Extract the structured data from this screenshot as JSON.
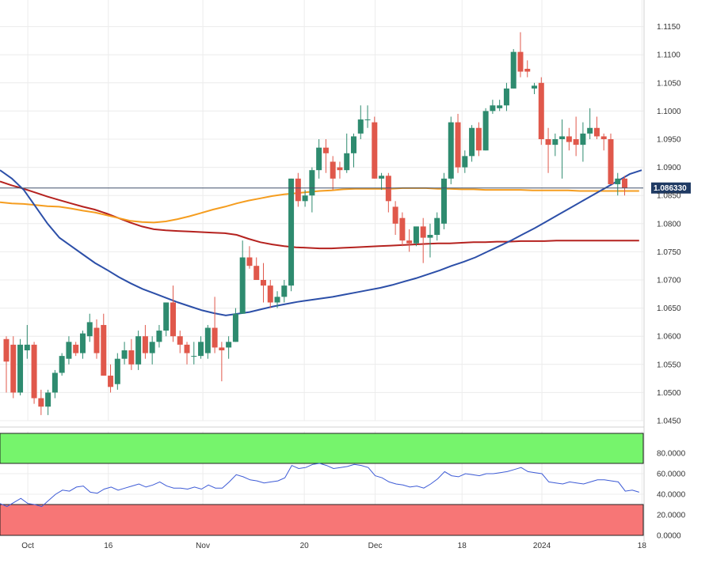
{
  "chart_data": [
    {
      "type": "candlestick",
      "symbol": "",
      "title": "",
      "x_ticks": [
        "Oct",
        "16",
        "Nov",
        "20",
        "Dec",
        "18",
        "2024",
        "18"
      ],
      "y_ticks": [
        "1.1150",
        "1.1100",
        "1.1050",
        "1.1000",
        "1.0950",
        "1.0900",
        "1.0850",
        "1.0800",
        "1.0750",
        "1.0700",
        "1.0650",
        "1.0600",
        "1.0550",
        "1.0500",
        "1.0450"
      ],
      "ylim": [
        1.045,
        1.118
      ],
      "last_price": 1.08633,
      "last_price_label": "1.086330",
      "grid": true,
      "colors": {
        "up": "#2e8b6f",
        "down": "#e0584b",
        "sma_fast": "#2c4fa8",
        "sma_mid": "#f59d1f",
        "sma_slow": "#b5221f",
        "last_price_line": "#41516b",
        "last_price_bg": "#1f3a63"
      },
      "candles": [
        [
          1.0595,
          1.06,
          1.05,
          1.0555
        ],
        [
          1.0585,
          1.06,
          1.049,
          1.05
        ],
        [
          1.05,
          1.0595,
          1.0495,
          1.0585
        ],
        [
          1.0575,
          1.062,
          1.056,
          1.0585
        ],
        [
          1.0585,
          1.059,
          1.048,
          1.049
        ],
        [
          1.049,
          1.0505,
          1.046,
          1.0475
        ],
        [
          1.0475,
          1.0505,
          1.046,
          1.05
        ],
        [
          1.05,
          1.054,
          1.049,
          1.0535
        ],
        [
          1.0535,
          1.057,
          1.053,
          1.0565
        ],
        [
          1.056,
          1.06,
          1.055,
          1.059
        ],
        [
          1.0585,
          1.059,
          1.0565,
          1.057
        ],
        [
          1.057,
          1.061,
          1.056,
          1.0605
        ],
        [
          1.06,
          1.064,
          1.059,
          1.0625
        ],
        [
          1.0615,
          1.063,
          1.056,
          1.057
        ],
        [
          1.062,
          1.064,
          1.053,
          1.053
        ],
        [
          1.053,
          1.055,
          1.05,
          1.051
        ],
        [
          1.0515,
          1.057,
          1.0505,
          1.056
        ],
        [
          1.056,
          1.059,
          1.055,
          1.0575
        ],
        [
          1.0575,
          1.0595,
          1.054,
          1.055
        ],
        [
          1.055,
          1.061,
          1.054,
          1.06
        ],
        [
          1.06,
          1.062,
          1.056,
          1.057
        ],
        [
          1.057,
          1.06,
          1.055,
          1.059
        ],
        [
          1.059,
          1.062,
          1.058,
          1.061
        ],
        [
          1.061,
          1.066,
          1.06,
          1.066
        ],
        [
          1.066,
          1.069,
          1.059,
          1.06
        ],
        [
          1.06,
          1.061,
          1.057,
          1.0585
        ],
        [
          1.0585,
          1.059,
          1.055,
          1.057
        ],
        [
          1.0565,
          1.059,
          1.055,
          1.0565
        ],
        [
          1.0565,
          1.06,
          1.056,
          1.059
        ],
        [
          1.057,
          1.062,
          1.056,
          1.0615
        ],
        [
          1.0615,
          1.067,
          1.057,
          1.058
        ],
        [
          1.058,
          1.059,
          1.052,
          1.0575
        ],
        [
          1.058,
          1.06,
          1.056,
          1.059
        ],
        [
          1.059,
          1.065,
          1.059,
          1.064
        ],
        [
          1.064,
          1.077,
          1.064,
          1.074
        ],
        [
          1.074,
          1.076,
          1.072,
          1.0725
        ],
        [
          1.0725,
          1.074,
          1.07,
          1.07
        ],
        [
          1.07,
          1.073,
          1.066,
          1.069
        ],
        [
          1.069,
          1.07,
          1.065,
          1.066
        ],
        [
          1.066,
          1.068,
          1.065,
          1.067
        ],
        [
          1.067,
          1.07,
          1.066,
          1.069
        ],
        [
          1.069,
          1.088,
          1.068,
          1.088
        ],
        [
          1.088,
          1.089,
          1.083,
          1.084
        ],
        [
          1.084,
          1.086,
          1.083,
          1.085
        ],
        [
          1.085,
          1.09,
          1.082,
          1.0895
        ],
        [
          1.0895,
          1.095,
          1.088,
          1.0935
        ],
        [
          1.0935,
          1.095,
          1.089,
          1.0925
        ],
        [
          1.091,
          1.092,
          1.086,
          1.088
        ],
        [
          1.09,
          1.091,
          1.088,
          1.0895
        ],
        [
          1.0895,
          1.096,
          1.089,
          1.0925
        ],
        [
          1.0925,
          1.096,
          1.09,
          1.0955
        ],
        [
          1.096,
          1.101,
          1.095,
          1.0985
        ],
        [
          1.0985,
          1.101,
          1.097,
          1.0985
        ],
        [
          1.098,
          1.099,
          1.088,
          1.088
        ],
        [
          1.088,
          1.089,
          1.086,
          1.0885
        ],
        [
          1.0885,
          1.089,
          1.082,
          1.084
        ],
        [
          1.083,
          1.084,
          1.078,
          1.08
        ],
        [
          1.081,
          1.082,
          1.076,
          1.077
        ],
        [
          1.077,
          1.079,
          1.075,
          1.0765
        ],
        [
          1.0765,
          1.079,
          1.076,
          1.0795
        ],
        [
          1.0795,
          1.081,
          1.073,
          1.0775
        ],
        [
          1.0775,
          1.08,
          1.074,
          1.078
        ],
        [
          1.078,
          1.082,
          1.077,
          1.081
        ],
        [
          1.08,
          1.089,
          1.079,
          1.088
        ],
        [
          1.088,
          1.099,
          1.087,
          1.098
        ],
        [
          1.098,
          1.0995,
          1.089,
          1.09
        ],
        [
          1.09,
          1.093,
          1.089,
          1.092
        ],
        [
          1.092,
          1.0975,
          1.091,
          1.097
        ],
        [
          1.097,
          1.098,
          1.092,
          1.093
        ],
        [
          1.093,
          1.1005,
          1.093,
          1.1
        ],
        [
          1.1,
          1.102,
          1.0995,
          1.101
        ],
        [
          1.1005,
          1.102,
          1.1,
          1.101
        ],
        [
          1.101,
          1.105,
          1.1,
          1.104
        ],
        [
          1.104,
          1.111,
          1.104,
          1.1105
        ],
        [
          1.1105,
          1.114,
          1.106,
          1.107
        ],
        [
          1.1075,
          1.109,
          1.106,
          1.107
        ],
        [
          1.104,
          1.105,
          1.103,
          1.1045
        ],
        [
          1.105,
          1.106,
          1.094,
          1.095
        ],
        [
          1.095,
          1.097,
          1.089,
          1.094
        ],
        [
          1.094,
          1.096,
          1.092,
          1.095
        ],
        [
          1.095,
          1.0985,
          1.088,
          1.0955
        ],
        [
          1.0955,
          1.097,
          1.093,
          1.0945
        ],
        [
          1.095,
          1.099,
          1.092,
          1.094
        ],
        [
          1.094,
          1.098,
          1.091,
          1.096
        ],
        [
          1.096,
          1.1005,
          1.095,
          1.097
        ],
        [
          1.097,
          1.099,
          1.095,
          1.0955
        ],
        [
          1.0955,
          1.096,
          1.093,
          1.095
        ],
        [
          1.095,
          1.096,
          1.087,
          1.087
        ],
        [
          1.087,
          1.089,
          1.085,
          1.088
        ],
        [
          1.088,
          1.0885,
          1.085,
          1.0863
        ]
      ],
      "sma_fast": [
        1.0895,
        1.088,
        1.086,
        1.083,
        1.08,
        1.0775,
        1.076,
        1.0745,
        1.073,
        1.0718,
        1.0705,
        1.0694,
        1.0684,
        1.0676,
        1.0668,
        1.066,
        1.0653,
        1.0646,
        1.0641,
        1.0637,
        1.064,
        1.0643,
        1.0648,
        1.0653,
        1.0657,
        1.0661,
        1.0664,
        1.0667,
        1.067,
        1.0674,
        1.0678,
        1.0682,
        1.0686,
        1.0691,
        1.0697,
        1.0703,
        1.071,
        1.0717,
        1.0725,
        1.0732,
        1.074,
        1.075,
        1.076,
        1.077,
        1.0781,
        1.0792,
        1.0804,
        1.0816,
        1.0828,
        1.084,
        1.0852,
        1.0864,
        1.0876,
        1.0888,
        1.0895
      ],
      "sma_fast_x": [
        0,
        2,
        4,
        6,
        8,
        10,
        12,
        14,
        16,
        18,
        20,
        22,
        24,
        26,
        28,
        30,
        32,
        34,
        36,
        38,
        40,
        42,
        44,
        46,
        48,
        50,
        52,
        54,
        56,
        58,
        60,
        62,
        64,
        66,
        68,
        70,
        72,
        74,
        76,
        78,
        80,
        82,
        84,
        86,
        88,
        90,
        92,
        94,
        96,
        98,
        100,
        102,
        104,
        106,
        108
      ],
      "sma_mid": [
        1.0838,
        1.0836,
        1.0835,
        1.0833,
        1.0831,
        1.083,
        1.0827,
        1.0823,
        1.082,
        1.0815,
        1.081,
        1.0805,
        1.0803,
        1.0802,
        1.0804,
        1.0808,
        1.0813,
        1.0819,
        1.0825,
        1.083,
        1.0836,
        1.0841,
        1.0845,
        1.0849,
        1.0852,
        1.0854,
        1.0856,
        1.0858,
        1.0859,
        1.0861,
        1.0862,
        1.0862,
        1.0862,
        1.0862,
        1.0863,
        1.0863,
        1.0863,
        1.0862,
        1.0862,
        1.0861,
        1.0861,
        1.086,
        1.086,
        1.086,
        1.086,
        1.0859,
        1.0859,
        1.0859,
        1.0859,
        1.0858,
        1.0858,
        1.0858,
        1.0858,
        1.0858,
        1.0858
      ],
      "sma_slow": [
        1.0875,
        1.0868,
        1.0862,
        1.0855,
        1.0848,
        1.0842,
        1.0836,
        1.083,
        1.0825,
        1.0818,
        1.081,
        1.0802,
        1.0795,
        1.079,
        1.0788,
        1.0787,
        1.0786,
        1.0785,
        1.0784,
        1.0783,
        1.078,
        1.0773,
        1.0767,
        1.0763,
        1.076,
        1.0758,
        1.0757,
        1.0756,
        1.0756,
        1.0757,
        1.0758,
        1.0759,
        1.076,
        1.0761,
        1.0762,
        1.0763,
        1.0764,
        1.0765,
        1.0765,
        1.0766,
        1.0767,
        1.0767,
        1.0768,
        1.0768,
        1.0769,
        1.0769,
        1.0769,
        1.077,
        1.077,
        1.077,
        1.077,
        1.077,
        1.077,
        1.077,
        1.077
      ]
    },
    {
      "type": "line",
      "title": "",
      "y_ticks": [
        "80.0000",
        "60.0000",
        "40.0000",
        "20.0000",
        "0.0000"
      ],
      "ylim": [
        0,
        100
      ],
      "zones": {
        "overbought_from": 70,
        "oversold_to": 30
      },
      "colors": {
        "line": "#3d5bd6",
        "overbought": "#76f46c",
        "oversold": "#f77676"
      },
      "values": [
        31,
        28,
        32,
        36,
        31,
        30,
        28,
        34,
        40,
        44,
        43,
        47,
        48,
        42,
        41,
        45,
        47,
        44,
        46,
        48,
        50,
        47,
        49,
        52,
        48,
        46,
        46,
        45,
        47,
        45,
        49,
        46,
        46,
        52,
        59,
        57,
        54,
        53,
        51,
        52,
        53,
        56,
        68,
        65,
        66,
        69,
        70,
        68,
        65,
        66,
        67,
        69,
        68,
        66,
        58,
        56,
        52,
        50,
        49,
        47,
        48,
        46,
        50,
        55,
        62,
        58,
        57,
        60,
        59,
        58,
        60,
        60,
        61,
        62,
        64,
        66,
        62,
        61,
        60,
        52,
        51,
        50,
        52,
        51,
        50,
        52,
        54,
        54,
        53,
        52,
        43,
        44,
        42
      ]
    }
  ]
}
